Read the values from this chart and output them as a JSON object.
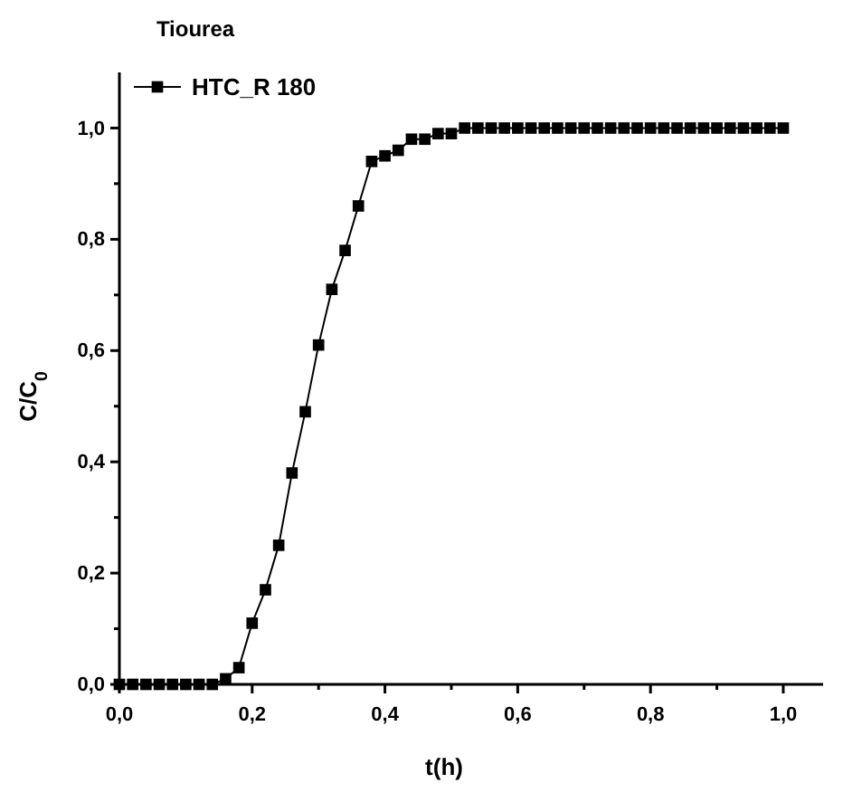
{
  "chart_data": {
    "type": "line",
    "title": "Tiourea",
    "xlabel": "t(h)",
    "ylabel": "C/C$_{0}$",
    "marker": "square",
    "legend": "top left",
    "xlim": [
      0,
      1.06
    ],
    "ylim": [
      0,
      1.1
    ],
    "xticks": [
      {
        "value": 0,
        "label": "0,0"
      },
      {
        "value": 0.2,
        "label": "0,2"
      },
      {
        "value": 0.4,
        "label": "0,4"
      },
      {
        "value": 0.6,
        "label": "0,6"
      },
      {
        "value": 0.8,
        "label": "0,8"
      },
      {
        "value": 1,
        "label": "1,0"
      }
    ],
    "yticks": [
      {
        "value": 0,
        "label": "0,0"
      },
      {
        "value": 0.2,
        "label": "0,2"
      },
      {
        "value": 0.4,
        "label": "0,4"
      },
      {
        "value": 0.6,
        "label": "0,6"
      },
      {
        "value": 0.8,
        "label": "0,8"
      },
      {
        "value": 1,
        "label": "1,0"
      }
    ],
    "x": [
      0,
      0.02,
      0.04,
      0.06,
      0.08,
      0.1,
      0.12,
      0.14,
      0.16,
      0.18,
      0.2,
      0.22,
      0.24,
      0.26,
      0.28,
      0.3,
      0.32,
      0.34,
      0.36,
      0.38,
      0.4,
      0.42,
      0.44,
      0.46,
      0.48,
      0.5,
      0.52,
      0.54,
      0.56,
      0.58,
      0.6,
      0.62,
      0.64,
      0.66,
      0.68,
      0.7,
      0.72,
      0.74,
      0.76,
      0.78,
      0.8,
      0.82,
      0.84,
      0.86,
      0.88,
      0.9,
      0.92,
      0.94,
      0.96,
      0.98,
      1
    ],
    "series": [
      {
        "name": "HTC_R 180",
        "color": "#000000",
        "values": [
          0,
          0,
          0,
          0,
          0,
          0,
          0,
          0,
          0.01,
          0.03,
          0.11,
          0.17,
          0.25,
          0.38,
          0.49,
          0.61,
          0.71,
          0.78,
          0.86,
          0.94,
          0.95,
          0.96,
          0.98,
          0.98,
          0.99,
          0.99,
          1,
          1,
          1,
          1,
          1,
          1,
          1,
          1,
          1,
          1,
          1,
          1,
          1,
          1,
          1,
          1,
          1,
          1,
          1,
          1,
          1,
          1,
          1,
          1,
          1
        ]
      }
    ]
  }
}
